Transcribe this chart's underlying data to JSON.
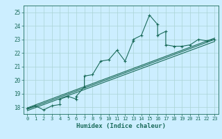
{
  "xlabel": "Humidex (Indice chaleur)",
  "bg_color": "#cceeff",
  "line_color": "#1a6b5a",
  "grid_color": "#aad4d4",
  "xlim": [
    -0.5,
    23.5
  ],
  "ylim": [
    17.5,
    25.5
  ],
  "yticks": [
    18,
    19,
    20,
    21,
    22,
    23,
    24,
    25
  ],
  "xticks": [
    0,
    1,
    2,
    3,
    4,
    5,
    6,
    7,
    8,
    9,
    10,
    11,
    12,
    13,
    14,
    15,
    16,
    17,
    18,
    19,
    20,
    21,
    22,
    23
  ],
  "scatter_x": [
    0,
    1,
    2,
    3,
    4,
    4,
    5,
    5,
    6,
    6,
    7,
    7,
    8,
    9,
    10,
    11,
    12,
    13,
    13,
    14,
    15,
    16,
    16,
    17,
    17,
    18,
    19,
    20,
    21,
    22,
    23
  ],
  "scatter_y": [
    17.9,
    18.1,
    17.8,
    18.1,
    18.2,
    18.6,
    18.8,
    18.8,
    18.6,
    18.8,
    19.5,
    20.3,
    20.4,
    21.4,
    21.5,
    22.2,
    21.4,
    22.9,
    23.0,
    23.3,
    24.8,
    24.1,
    23.3,
    23.6,
    22.6,
    22.5,
    22.5,
    22.6,
    23.0,
    22.9,
    23.0
  ],
  "line1_y": [
    17.85,
    23.0
  ],
  "line2_y": [
    17.75,
    22.85
  ],
  "line3_y": [
    17.95,
    23.1
  ]
}
